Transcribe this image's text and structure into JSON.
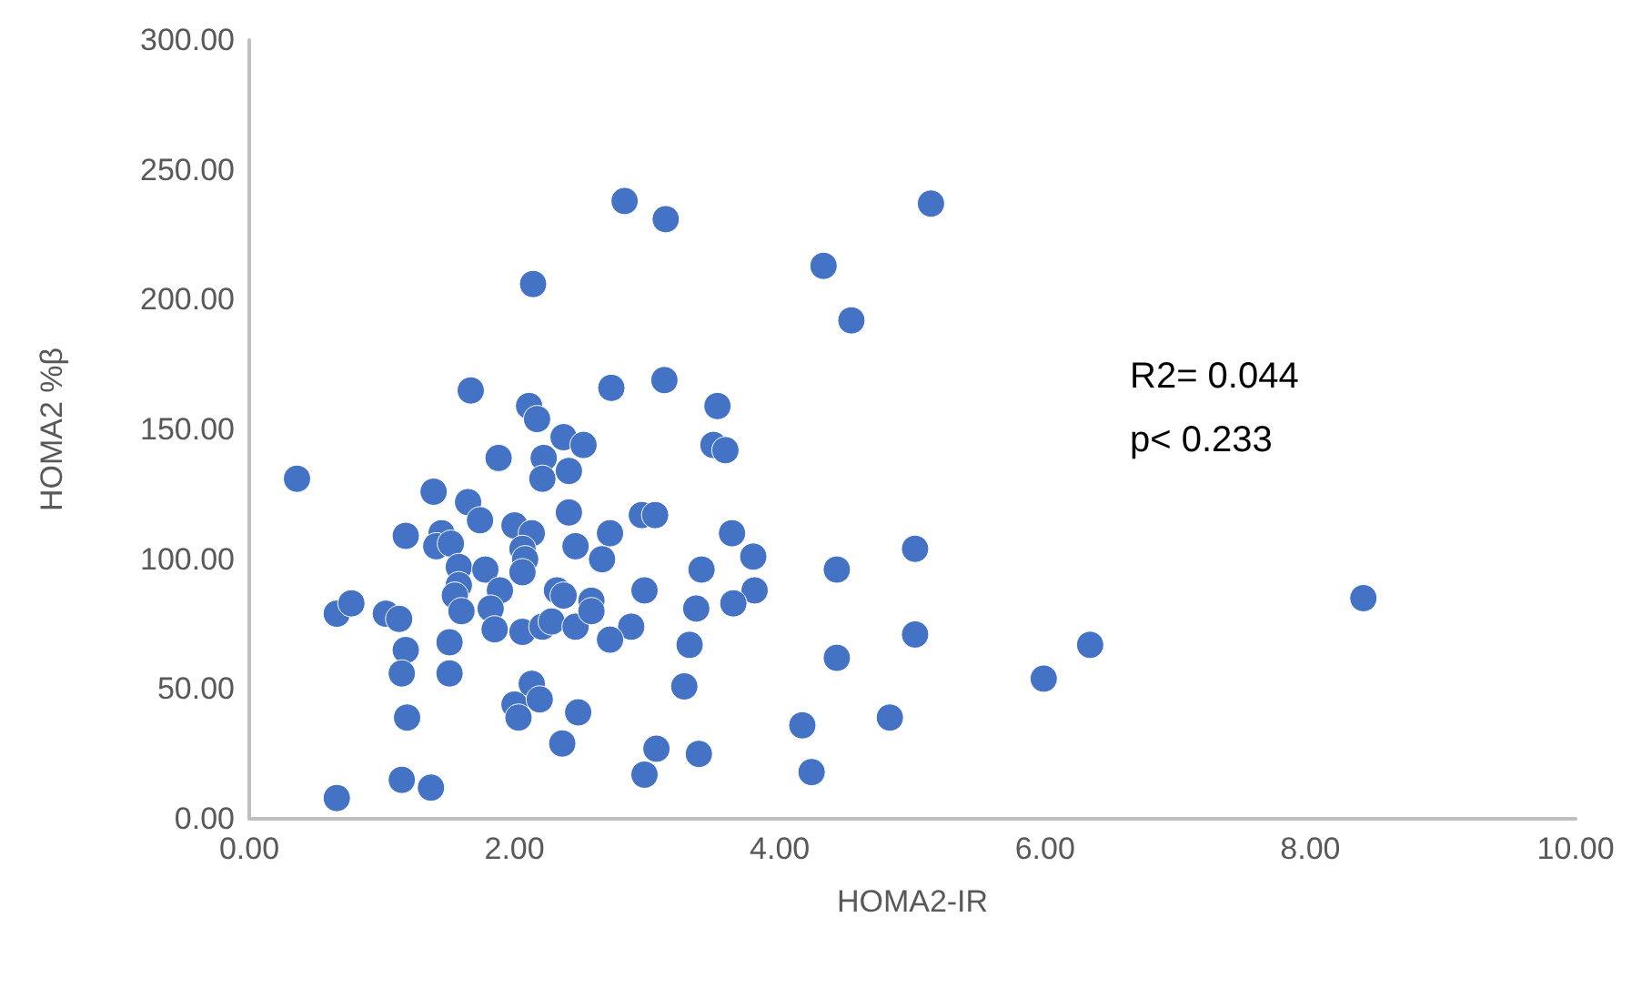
{
  "chart_data": {
    "type": "scatter",
    "xlabel": "HOMA2-IR",
    "ylabel": "HOMA2 %β",
    "marker": "circle",
    "grid": false,
    "xlim": [
      0,
      10
    ],
    "ylim": [
      0,
      300
    ],
    "xticks": [
      {
        "value": 0,
        "label": "0.00"
      },
      {
        "value": 2,
        "label": "2.00"
      },
      {
        "value": 4,
        "label": "4.00"
      },
      {
        "value": 6,
        "label": "6.00"
      },
      {
        "value": 8,
        "label": "8.00"
      },
      {
        "value": 10,
        "label": "10.00"
      }
    ],
    "yticks": [
      {
        "value": 0,
        "label": "0.00"
      },
      {
        "value": 50,
        "label": "50.00"
      },
      {
        "value": 100,
        "label": "100.00"
      },
      {
        "value": 150,
        "label": "150.00"
      },
      {
        "value": 200,
        "label": "200.00"
      },
      {
        "value": 250,
        "label": "250.00"
      },
      {
        "value": 300,
        "label": "300.00"
      }
    ],
    "annotations": [
      "R2= 0.044",
      "p< 0.233"
    ],
    "series": [
      {
        "color": "#4472c4",
        "x": [
          0.36,
          0.66,
          0.66,
          0.77,
          1.03,
          1.13,
          1.18,
          1.18,
          1.15,
          1.19,
          1.15,
          1.37,
          1.39,
          1.65,
          1.74,
          1.45,
          1.41,
          1.52,
          1.58,
          1.78,
          1.58,
          1.55,
          1.6,
          1.51,
          1.51,
          1.67,
          1.89,
          1.82,
          1.85,
          1.88,
          2.0,
          2.13,
          2.06,
          2.08,
          2.06,
          2.06,
          2.21,
          2.28,
          2.32,
          2.37,
          2.46,
          2.58,
          2.58,
          2.41,
          2.46,
          2.72,
          2.66,
          2.96,
          3.06,
          2.98,
          2.88,
          2.72,
          2.13,
          2.0,
          2.19,
          2.03,
          2.48,
          2.36,
          3.07,
          2.98,
          3.28,
          3.32,
          3.37,
          3.41,
          3.39,
          2.14,
          2.83,
          3.14,
          2.73,
          3.13,
          2.11,
          2.17,
          2.37,
          2.52,
          2.22,
          2.21,
          2.41,
          3.53,
          3.5,
          3.59,
          3.64,
          3.8,
          3.81,
          3.65,
          4.33,
          4.54,
          5.14,
          4.43,
          5.02,
          4.43,
          5.02,
          4.17,
          4.83,
          4.24,
          5.99,
          6.34,
          8.4
        ],
        "values": [
          131,
          8,
          79,
          83,
          79,
          77,
          109,
          65,
          56,
          39,
          15,
          12,
          126,
          122,
          115,
          110,
          105,
          106,
          97,
          96,
          90,
          86,
          80,
          68,
          56,
          165,
          88,
          81,
          73,
          139,
          113,
          110,
          104,
          100,
          95,
          72,
          74,
          76,
          88,
          86,
          74,
          84,
          80,
          118,
          105,
          110,
          100,
          117,
          117,
          88,
          74,
          69,
          52,
          44,
          46,
          39,
          41,
          29,
          27,
          17,
          51,
          67,
          81,
          96,
          25,
          206,
          238,
          231,
          166,
          169,
          159,
          154,
          147,
          144,
          139,
          131,
          134,
          159,
          144,
          142,
          110,
          101,
          88,
          83,
          213,
          192,
          237,
          96,
          104,
          62,
          71,
          36,
          39,
          18,
          54,
          67,
          85
        ]
      }
    ]
  }
}
